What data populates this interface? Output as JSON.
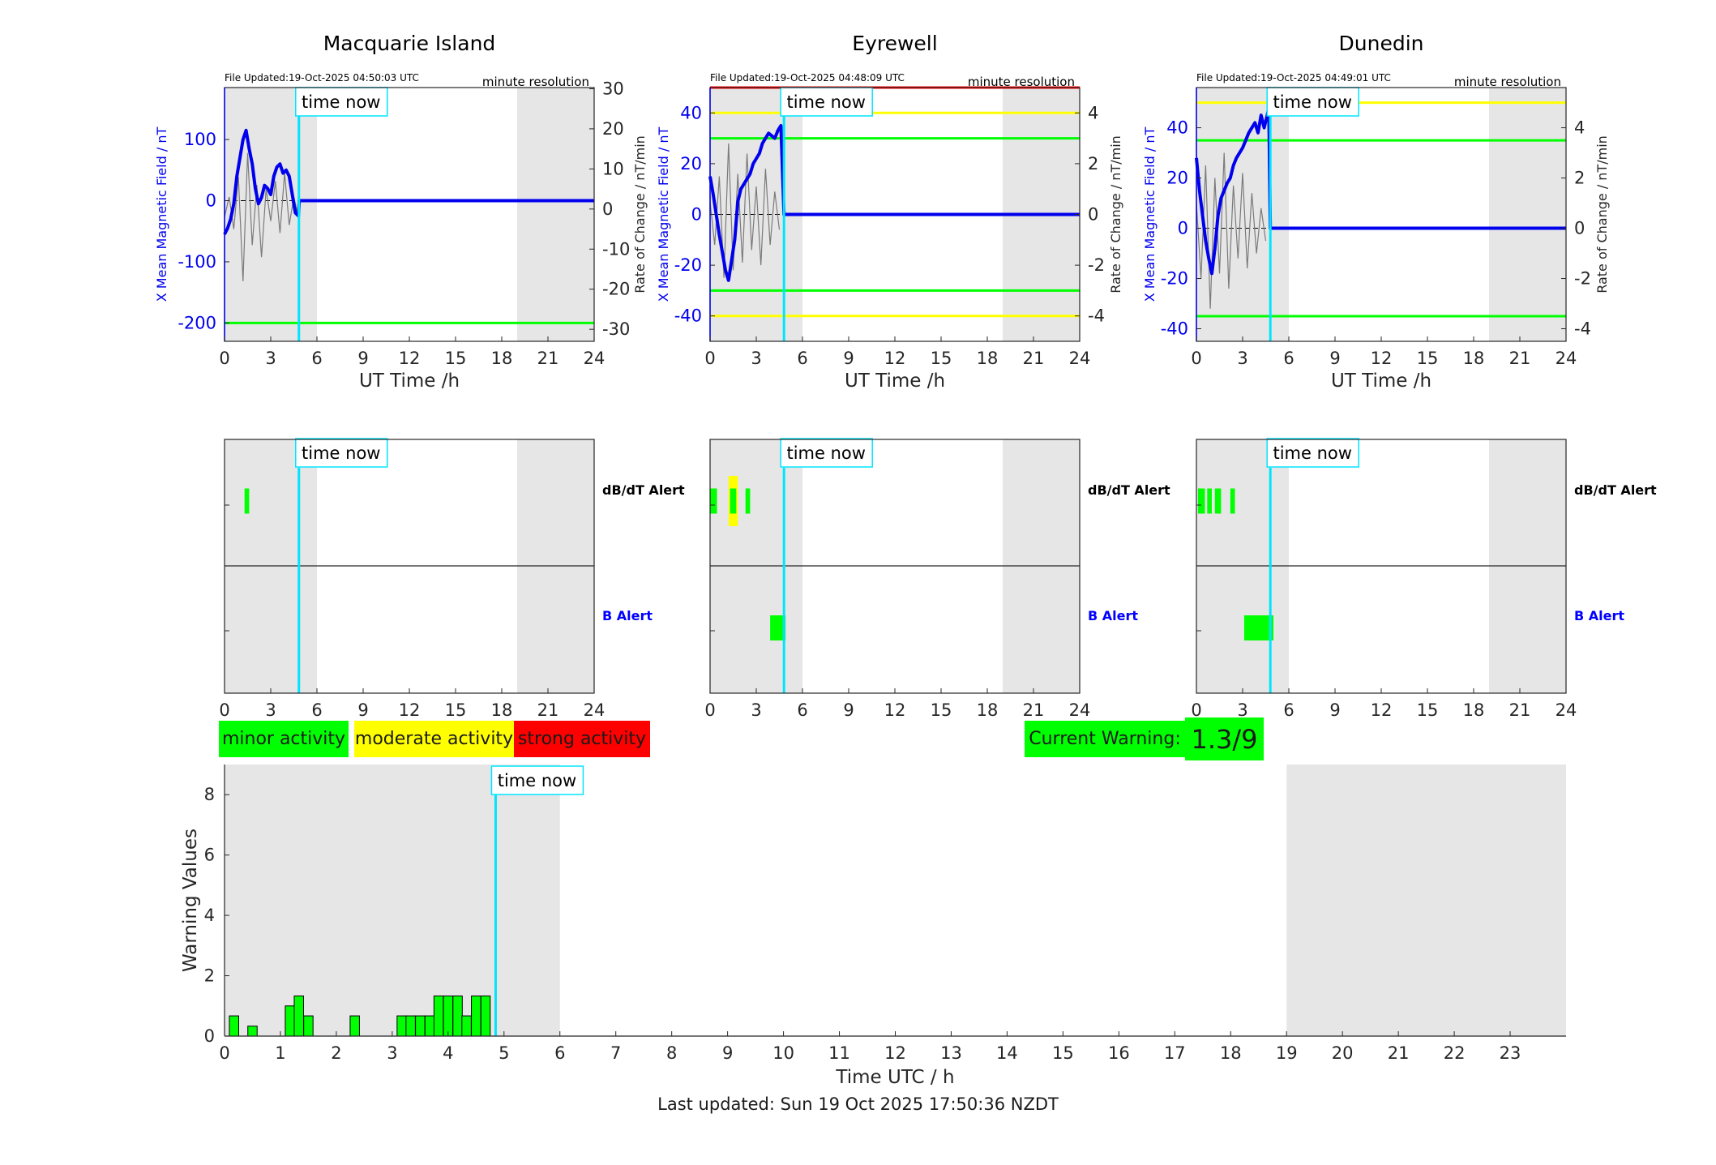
{
  "colors": {
    "background": "#ffffff",
    "night_shade": "#e6e6e6",
    "time_now_line": "#00e5ff",
    "x_field_series": "#0000ee",
    "rate_series": "#7a7a7a",
    "minor": "#00ff00",
    "moderate": "#ffff00",
    "strong": "#ff0000",
    "b_alert_label": "#0000ff"
  },
  "time_now_label": "time now",
  "legend": {
    "minor": "minor activity",
    "moderate": "moderate activity",
    "strong": "strong activity"
  },
  "current_warning": {
    "label": "Current Warning:",
    "value": "1.3/9"
  },
  "footer": {
    "last_updated": "Last updated: Sun 19 Oct 2025 17:50:36 NZDT"
  },
  "chart_data": [
    {
      "type": "line",
      "title": "Macquarie Island",
      "file_updated": "File Updated:19-Oct-2025 04:50:03 UTC",
      "resolution_note": "minute resolution",
      "xlabel": "UT Time /h",
      "ylabel": "X Mean Magnetic Field / nT",
      "ylabel_right": "Rate of Change / nT/min",
      "xlim": [
        0,
        24
      ],
      "xticks": [
        0,
        3,
        6,
        9,
        12,
        15,
        18,
        21,
        24
      ],
      "ylim": [
        -230,
        185
      ],
      "yticks": [
        -200,
        -100,
        0,
        100
      ],
      "y2lim": [
        -33,
        30.3
      ],
      "y2ticks": [
        -30,
        -20,
        -10,
        0,
        10,
        20,
        30
      ],
      "time_now": 4.83,
      "night_shading": [
        [
          0,
          6
        ],
        [
          19,
          24
        ]
      ],
      "threshold_lines": [
        {
          "value": -200,
          "color": "#00ff00"
        }
      ],
      "series": [
        {
          "name": "X",
          "x": [
            0,
            0.2,
            0.4,
            0.6,
            0.8,
            1.0,
            1.2,
            1.4,
            1.6,
            1.8,
            2.0,
            2.2,
            2.4,
            2.6,
            2.8,
            3.0,
            3.2,
            3.4,
            3.6,
            3.8,
            4.0,
            4.2,
            4.4,
            4.6,
            4.8,
            4.85,
            24
          ],
          "values": [
            -55,
            -45,
            -30,
            -5,
            40,
            70,
            100,
            115,
            85,
            60,
            20,
            -5,
            5,
            25,
            20,
            10,
            40,
            55,
            60,
            45,
            50,
            40,
            10,
            -20,
            -25,
            0,
            0
          ]
        },
        {
          "name": "dB/dt",
          "x": [
            0,
            0.3,
            0.6,
            0.9,
            1.2,
            1.5,
            1.8,
            2.1,
            2.4,
            2.7,
            3.0,
            3.3,
            3.6,
            3.9,
            4.2,
            4.5,
            4.8
          ],
          "values": [
            -2,
            3,
            -5,
            8,
            -18,
            14,
            -9,
            6,
            -12,
            5,
            -3,
            7,
            -6,
            9,
            -4,
            3,
            -2
          ]
        }
      ],
      "alerts": {
        "dbdt_label": "dB/dT Alert",
        "b_label": "B Alert",
        "dbdt": [
          {
            "start": 1.3,
            "end": 1.6,
            "level": "minor"
          }
        ],
        "b": []
      }
    },
    {
      "type": "line",
      "title": "Eyrewell",
      "file_updated": "File Updated:19-Oct-2025 04:48:09 UTC",
      "resolution_note": "minute resolution",
      "xlabel": "UT Time /h",
      "ylabel": "X Mean Magnetic Field / nT",
      "ylabel_right": "Rate of Change / nT/min",
      "xlim": [
        0,
        24
      ],
      "xticks": [
        0,
        3,
        6,
        9,
        12,
        15,
        18,
        21,
        24
      ],
      "ylim": [
        -50,
        50
      ],
      "yticks": [
        -40,
        -20,
        0,
        20,
        40
      ],
      "y2lim": [
        -5,
        5
      ],
      "y2ticks": [
        -4,
        -2,
        0,
        2,
        4
      ],
      "time_now": 4.8,
      "night_shading": [
        [
          0,
          6
        ],
        [
          19,
          24
        ]
      ],
      "threshold_lines": [
        {
          "value": 50,
          "color": "#ff0000"
        },
        {
          "value": 40,
          "color": "#ffff00"
        },
        {
          "value": 30,
          "color": "#00ff00"
        },
        {
          "value": -30,
          "color": "#00ff00"
        },
        {
          "value": -40,
          "color": "#ffff00"
        }
      ],
      "series": [
        {
          "name": "X",
          "x": [
            0,
            0.2,
            0.4,
            0.6,
            0.8,
            1.0,
            1.2,
            1.4,
            1.6,
            1.8,
            2.0,
            2.2,
            2.4,
            2.6,
            2.8,
            3.0,
            3.2,
            3.4,
            3.6,
            3.8,
            4.0,
            4.2,
            4.4,
            4.6,
            4.8,
            24
          ],
          "values": [
            15,
            8,
            0,
            -8,
            -15,
            -22,
            -26,
            -18,
            -10,
            5,
            10,
            12,
            14,
            16,
            20,
            22,
            24,
            28,
            30,
            32,
            31,
            30,
            33,
            35,
            0,
            0
          ]
        },
        {
          "name": "dB/dt",
          "x": [
            0,
            0.3,
            0.6,
            0.9,
            1.2,
            1.5,
            1.8,
            2.1,
            2.4,
            2.7,
            3.0,
            3.3,
            3.6,
            3.9,
            4.2,
            4.5
          ],
          "values": [
            0.5,
            -1.2,
            1.5,
            -2.5,
            2.8,
            -2.2,
            1.6,
            -1.9,
            2.4,
            -1.4,
            1.1,
            -2.0,
            1.8,
            -1.2,
            0.9,
            -0.6
          ]
        }
      ],
      "alerts": {
        "dbdt_label": "dB/dT Alert",
        "b_label": "B Alert",
        "dbdt": [
          {
            "start": 0.0,
            "end": 0.45,
            "level": "minor"
          },
          {
            "start": 1.2,
            "end": 1.8,
            "level": "moderate"
          },
          {
            "start": 1.3,
            "end": 1.7,
            "level": "minor"
          },
          {
            "start": 2.3,
            "end": 2.6,
            "level": "minor"
          }
        ],
        "b": [
          {
            "start": 3.9,
            "end": 4.9,
            "level": "minor"
          }
        ]
      }
    },
    {
      "type": "line",
      "title": "Dunedin",
      "file_updated": "File Updated:19-Oct-2025 04:49:01 UTC",
      "resolution_note": "minute resolution",
      "xlabel": "UT Time /h",
      "ylabel": "X Mean Magnetic Field / nT",
      "ylabel_right": "Rate of Change / nT/min",
      "xlim": [
        0,
        24
      ],
      "xticks": [
        0,
        3,
        6,
        9,
        12,
        15,
        18,
        21,
        24
      ],
      "ylim": [
        -45,
        56
      ],
      "yticks": [
        -40,
        -20,
        0,
        20,
        40
      ],
      "y2lim": [
        -4.5,
        5.6
      ],
      "y2ticks": [
        -4,
        -2,
        0,
        2,
        4
      ],
      "time_now": 4.8,
      "night_shading": [
        [
          0,
          6
        ],
        [
          19,
          24
        ]
      ],
      "threshold_lines": [
        {
          "value": 50,
          "color": "#ffff00"
        },
        {
          "value": 35,
          "color": "#00ff00"
        },
        {
          "value": -35,
          "color": "#00ff00"
        }
      ],
      "series": [
        {
          "name": "X",
          "x": [
            0,
            0.2,
            0.4,
            0.6,
            0.8,
            1.0,
            1.2,
            1.4,
            1.6,
            1.8,
            2.0,
            2.2,
            2.4,
            2.6,
            2.8,
            3.0,
            3.2,
            3.4,
            3.6,
            3.8,
            4.0,
            4.2,
            4.4,
            4.6,
            4.7,
            4.8,
            24
          ],
          "values": [
            28,
            15,
            5,
            -5,
            -12,
            -18,
            -8,
            5,
            12,
            15,
            18,
            20,
            25,
            28,
            30,
            32,
            35,
            38,
            40,
            42,
            38,
            45,
            40,
            45,
            48,
            0,
            0
          ]
        },
        {
          "name": "dB/dt",
          "x": [
            0,
            0.3,
            0.6,
            0.9,
            1.2,
            1.5,
            1.8,
            2.1,
            2.4,
            2.7,
            3.0,
            3.3,
            3.6,
            3.9,
            4.2,
            4.5
          ],
          "values": [
            1.0,
            -2.0,
            2.5,
            -3.2,
            2.0,
            -1.8,
            3.0,
            -2.4,
            1.7,
            -1.2,
            2.2,
            -1.6,
            1.4,
            -1.0,
            0.8,
            -0.5
          ]
        }
      ],
      "alerts": {
        "dbdt_label": "dB/dT Alert",
        "b_label": "B Alert",
        "dbdt": [
          {
            "start": 0.1,
            "end": 0.55,
            "level": "minor"
          },
          {
            "start": 0.7,
            "end": 1.0,
            "level": "minor"
          },
          {
            "start": 1.2,
            "end": 1.6,
            "level": "minor"
          },
          {
            "start": 2.2,
            "end": 2.5,
            "level": "minor"
          }
        ],
        "b": [
          {
            "start": 3.1,
            "end": 5.0,
            "level": "minor"
          }
        ]
      }
    },
    {
      "type": "bar",
      "title": "",
      "xlabel": "Time UTC / h",
      "ylabel": "Warning Values",
      "xlim": [
        0,
        24
      ],
      "xticks": [
        0,
        1,
        2,
        3,
        4,
        5,
        6,
        7,
        8,
        9,
        10,
        11,
        12,
        13,
        14,
        15,
        16,
        17,
        18,
        19,
        20,
        21,
        22,
        23
      ],
      "ylim": [
        0,
        9
      ],
      "yticks": [
        0,
        2,
        4,
        6,
        8
      ],
      "time_now": 4.85,
      "night_shading": [
        [
          0,
          6
        ],
        [
          19,
          24
        ]
      ],
      "bar_width_h": 0.1667,
      "x": [
        0.17,
        0.5,
        1.17,
        1.33,
        1.5,
        2.33,
        3.17,
        3.33,
        3.5,
        3.67,
        3.83,
        4.0,
        4.17,
        4.33,
        4.5,
        4.67
      ],
      "values": [
        0.67,
        0.33,
        1.0,
        1.33,
        0.67,
        0.67,
        0.67,
        0.67,
        0.67,
        0.67,
        1.33,
        1.33,
        1.33,
        0.67,
        1.33,
        1.33
      ]
    }
  ]
}
